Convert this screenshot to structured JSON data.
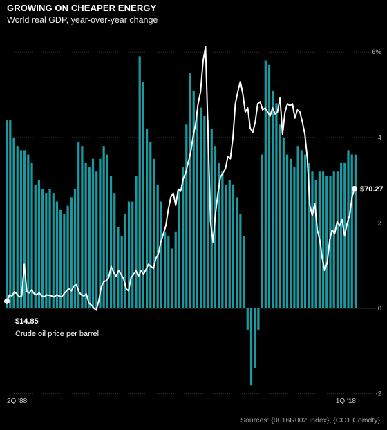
{
  "chart_data": {
    "type": "bar+line",
    "title": "GROWING ON CHEAPER ENERGY",
    "subtitle": "World real GDP, year-over-year change",
    "source": "Sources: {0016R002 Index}, {CO1 Comdty}",
    "x_start_label": "2Q '88",
    "x_end_label": "1Q '18",
    "y_axis": {
      "ticks": [
        "6%",
        "4",
        "2",
        "0",
        "-2"
      ],
      "tick_values": [
        6,
        4,
        2,
        0,
        -2
      ],
      "ylim": [
        -2,
        6
      ]
    },
    "colors": {
      "bar": "#1a9aa0",
      "line": "#ffffff",
      "background": "#000000"
    },
    "series": [
      {
        "name": "World real GDP, year-over-year change",
        "kind": "bar",
        "values": [
          4.4,
          4.4,
          4.0,
          3.8,
          3.7,
          3.7,
          3.6,
          3.4,
          2.9,
          3.0,
          2.8,
          2.7,
          2.8,
          2.7,
          2.5,
          2.3,
          2.2,
          2.4,
          2.6,
          2.8,
          3.9,
          3.8,
          3.4,
          3.3,
          3.5,
          3.2,
          3.5,
          3.8,
          3.6,
          3.1,
          2.7,
          1.9,
          1.7,
          2.2,
          2.5,
          2.5,
          3.1,
          5.9,
          5.3,
          4.2,
          3.9,
          3.5,
          2.9,
          2.5,
          1.8,
          1.7,
          1.4,
          1.8,
          2.8,
          3.3,
          4.3,
          5.5,
          5.1,
          4.6,
          4.7,
          4.5,
          4.4,
          4.2,
          3.8,
          3.4,
          3.2,
          2.9,
          3.0,
          2.9,
          2.6,
          2.2,
          1.7,
          -0.5,
          -1.8,
          -1.4,
          -0.5,
          3.6,
          5.8,
          5.7,
          5.1,
          4.8,
          4.3,
          4.0,
          3.6,
          3.5,
          3.3,
          3.8,
          3.7,
          3.6,
          3.4,
          3.2,
          3.0,
          3.2,
          3.2,
          3.1,
          3.1,
          3.2,
          3.2,
          3.4,
          3.4,
          3.7,
          3.6,
          3.6
        ]
      },
      {
        "name": "Crude oil price per barrel",
        "kind": "line",
        "start_label": "$14.85",
        "end_label": "$70.27",
        "values": [
          14.85,
          18.0,
          17.5,
          19.5,
          18.5,
          17.0,
          17.5,
          33.0,
          19.5,
          19.0,
          20.5,
          18.5,
          18.0,
          19.0,
          17.5,
          17.0,
          18.0,
          17.8,
          17.5,
          17.0,
          18.0,
          17.5,
          17.0,
          18.5,
          20.0,
          21.0,
          20.0,
          22.5,
          23.0,
          19.5,
          18.0,
          17.5,
          18.5,
          14.0,
          13.0,
          11.5,
          10.5,
          15.0,
          22.0,
          24.5,
          25.0,
          26.5,
          32.0,
          29.0,
          27.0,
          30.0,
          28.0,
          26.0,
          21.0,
          20.0,
          26.5,
          28.0,
          30.0,
          27.0,
          30.0,
          28.0,
          30.5,
          33.0,
          32.0,
          31.0,
          36.0,
          38.0,
          44.0,
          48.0,
          52.0,
          60.0,
          66.0,
          68.0,
          62.0,
          70.0,
          69.0,
          75.0,
          78.0,
          83.0,
          88.0,
          96.0,
          102.0,
          112.0,
          118.0,
          133.0,
          140.0,
          98.0,
          54.0,
          44.0,
          58.0,
          68.0,
          76.0,
          78.0,
          80.0,
          86.0,
          85.0,
          95.0,
          112.0,
          118.0,
          123.0,
          117.0,
          108.0,
          110.0,
          100.0,
          98.0,
          103.0,
          112.0,
          113.0,
          109.0,
          110.0,
          108.0,
          106.0,
          110.0,
          107.0,
          108.0,
          115.0,
          97.0,
          108.0,
          112.0,
          111.0,
          112.0,
          105.0,
          109.0,
          108.0,
          103.0,
          97.0,
          85.0,
          62.0,
          57.0,
          63.0,
          50.0,
          45.0,
          36.0,
          30.0,
          34.0,
          45.0,
          50.0,
          48.0,
          54.0,
          52.0,
          55.0,
          47.0,
          53.0,
          57.0,
          66.0,
          70.27
        ]
      }
    ]
  }
}
